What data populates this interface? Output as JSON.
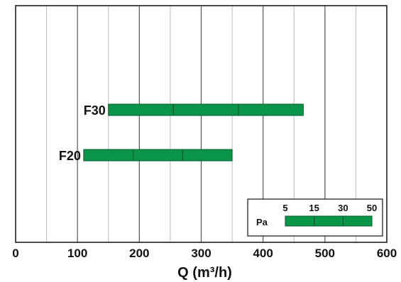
{
  "chart_data": {
    "type": "bar",
    "orientation": "horizontal-range",
    "title": "",
    "xlabel": "Q (m³/h)",
    "ylabel": "",
    "xlim": [
      0,
      600
    ],
    "x_ticks": [
      "0",
      "100",
      "200",
      "300",
      "400",
      "500",
      "600"
    ],
    "grid": true,
    "series": [
      {
        "name": "F30",
        "start": 150,
        "end": 465,
        "dividers": [
          255,
          360
        ]
      },
      {
        "name": "F20",
        "start": 110,
        "end": 350,
        "dividers": [
          190,
          270
        ]
      }
    ],
    "legend": {
      "placement": "bottom-right",
      "unit": "Pa",
      "levels": [
        "5",
        "15",
        "30",
        "50"
      ]
    },
    "colors": {
      "bar": "#0a9447",
      "bar_divider": "#055a2b",
      "grid_major": "#555555",
      "grid_minor": "#bbbbbb",
      "frame": "#111111"
    }
  }
}
